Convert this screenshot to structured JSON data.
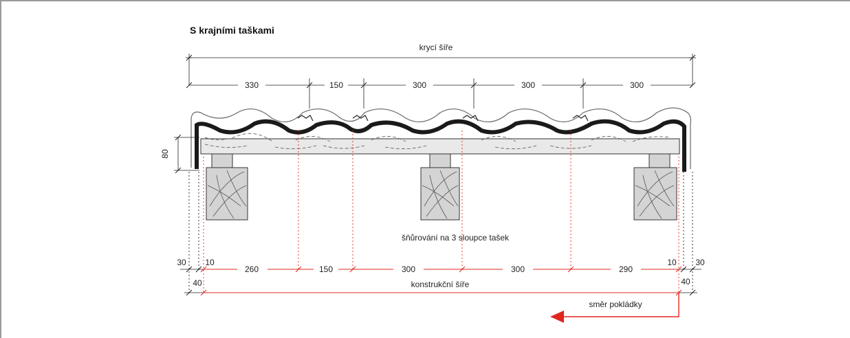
{
  "title": "S krajními taškami",
  "top_dimension_label": "krycí šíře",
  "top_segments": [
    "330",
    "150",
    "300",
    "300",
    "300"
  ],
  "height_label": "80",
  "note": "šňůrování na 3 sloupce tašek",
  "bottom_segments": [
    "260",
    "150",
    "300",
    "300",
    "290"
  ],
  "left_small": [
    "30",
    "10"
  ],
  "right_small": [
    "10",
    "30"
  ],
  "bottom_offsets": [
    "40",
    "40"
  ],
  "bottom_dimension_label": "konstrukční šíře",
  "direction_label": "směr pokládky",
  "colors": {
    "red": "#e0271f",
    "dark": "#1a1a1a",
    "wood": "#d4d4d4",
    "batten": "#e9e9e9"
  }
}
